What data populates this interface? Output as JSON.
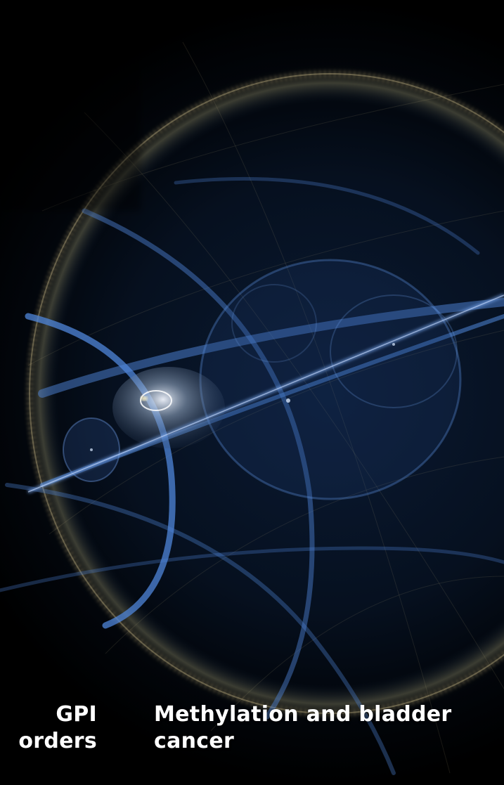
{
  "cards": [
    {
      "title": "GPI\norders"
    },
    {
      "title": "Methylation and bladder\ncancer"
    }
  ],
  "hero_image": {
    "icon": "fractal-sphere-artwork",
    "colors": {
      "background": "#000000",
      "ring_gold": "#c9b27a",
      "arc_blue": "#4f86d9",
      "glow_white": "#e8f0ff"
    }
  }
}
